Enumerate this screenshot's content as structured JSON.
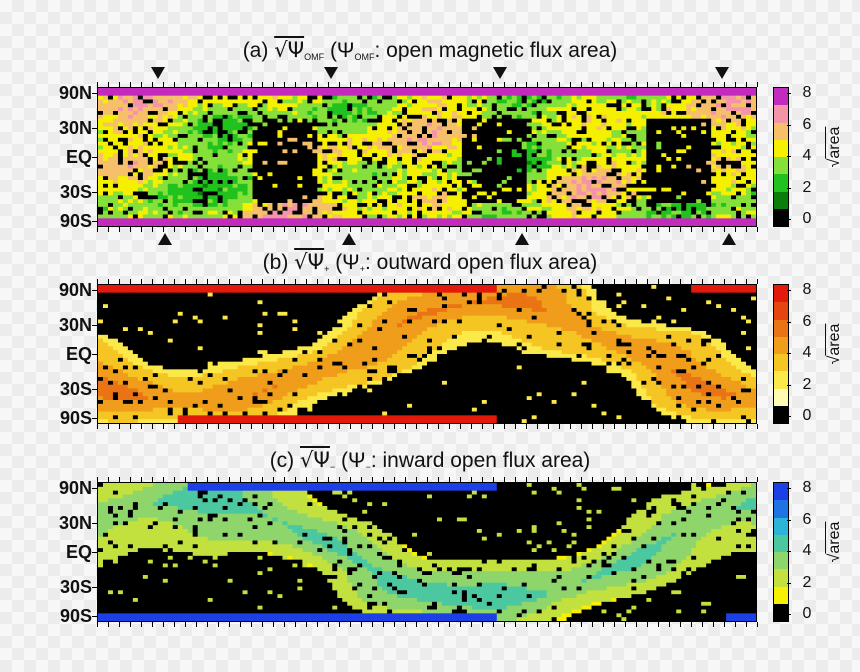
{
  "panels": [
    {
      "id": "a",
      "title_prefix": "(a) ",
      "title_sqrt": "√Ψ",
      "title_sub": "OMF",
      "title_mid": " (Ψ",
      "title_sub2": "OMF",
      "title_rest": ": open magnetic flux area)",
      "cbar_label_root": "√",
      "cbar_label_text": "area",
      "palette": [
        "#000000",
        "#0a7d0a",
        "#22c21e",
        "#86e03a",
        "#f4f000",
        "#f6c06a",
        "#f494a8",
        "#c22bbd"
      ]
    },
    {
      "id": "b",
      "title_prefix": "(b) ",
      "title_sqrt": "√Ψ",
      "title_sub": "+",
      "title_mid": " (Ψ",
      "title_sub2": "+",
      "title_rest": ": outward open flux area)",
      "cbar_label_root": "√",
      "cbar_label_text": "area",
      "palette": [
        "#000000",
        "#fffbb0",
        "#fbe94a",
        "#f5c523",
        "#ef9d1a",
        "#ea7414",
        "#e64510",
        "#e21a0c"
      ]
    },
    {
      "id": "c",
      "title_prefix": "(c) ",
      "title_sqrt": "√Ψ",
      "title_sub": "−",
      "title_mid": " (Ψ",
      "title_sub2": "−",
      "title_rest": ": inward open flux area)",
      "cbar_label_root": "√",
      "cbar_label_text": "area",
      "palette": [
        "#000000",
        "#f7f000",
        "#c2e03e",
        "#8ed66c",
        "#4cc8a0",
        "#2bb3d8",
        "#1f74e4",
        "#1c3fe6"
      ]
    }
  ],
  "colors": {
    "background_tick": "#000000",
    "text": "#111111"
  },
  "chart_data": [
    {
      "type": "heatmap",
      "title": "(a) √Ψ_OMF (Ψ_OMF: open magnetic flux area)",
      "ylabel": "",
      "y_tick_labels": [
        "90N",
        "30N",
        "EQ",
        "30S",
        "90S"
      ],
      "colorbar_label": "√area",
      "colorbar_ticks": [
        0,
        2,
        4,
        6,
        8
      ],
      "zlim": [
        0,
        8
      ],
      "x_tick_count": 60,
      "markers_top": 4,
      "markers_bottom": 4,
      "notes": "high values (purple) in polar bands, green/yellow mixed at mid-latitudes, dark gaps near equator"
    },
    {
      "type": "heatmap",
      "title": "(b) √Ψ+ (Ψ+: outward open flux area)",
      "y_tick_labels": [
        "90N",
        "30N",
        "EQ",
        "30S",
        "90S"
      ],
      "colorbar_label": "√area",
      "colorbar_ticks": [
        0,
        2,
        4,
        6,
        8
      ],
      "zlim": [
        0,
        8
      ],
      "x_tick_count": 60
    },
    {
      "type": "heatmap",
      "title": "(c) √Ψ− (Ψ−: inward open flux area)",
      "y_tick_labels": [
        "90N",
        "30N",
        "EQ",
        "30S",
        "90S"
      ],
      "colorbar_label": "√area",
      "colorbar_ticks": [
        0,
        2,
        4,
        6,
        8
      ],
      "zlim": [
        0,
        8
      ],
      "x_tick_count": 60
    }
  ]
}
